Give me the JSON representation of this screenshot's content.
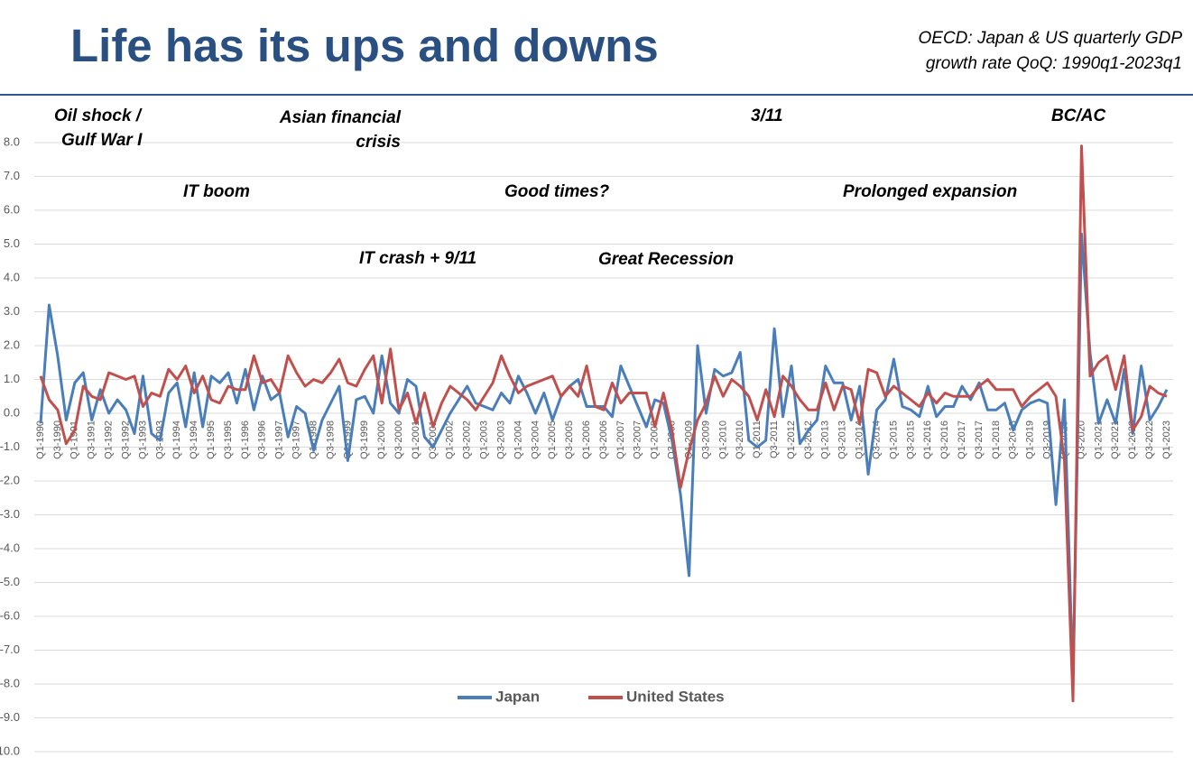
{
  "chart_data": {
    "type": "line",
    "title": "Life has its ups and downs",
    "subtitle": [
      "OECD: Japan & US quarterly GDP",
      "growth rate QoQ: 1990q1-2023q1"
    ],
    "annotations": [
      [
        "Oil shock /",
        "Gulf War I"
      ],
      [
        "Asian financial",
        "crisis"
      ],
      [
        "3/11"
      ],
      [
        "BC/AC"
      ],
      [
        "IT boom"
      ],
      [
        "Good times?"
      ],
      [
        "Prolonged expansion"
      ],
      [
        "IT crash + 9/11"
      ],
      [
        "Great Recession"
      ]
    ],
    "categories": [
      "Q1-1990",
      null,
      "Q3-1990",
      null,
      "Q1-1991",
      null,
      "Q3-1991",
      null,
      "Q1-1992",
      null,
      "Q3-1992",
      null,
      "Q1-1993",
      null,
      "Q3-1993",
      null,
      "Q1-1994",
      null,
      "Q3-1994",
      null,
      "Q1-1995",
      null,
      "Q3-1995",
      null,
      "Q1-1996",
      null,
      "Q3-1996",
      null,
      "Q1-1997",
      null,
      "Q3-1997",
      null,
      "Q1-1998",
      null,
      "Q3-1998",
      null,
      "Q1-1999",
      null,
      "Q3-1999",
      null,
      "Q1-2000",
      null,
      "Q3-2000",
      null,
      "Q1-2001",
      null,
      "Q3-2001",
      null,
      "Q1-2002",
      null,
      "Q3-2002",
      null,
      "Q1-2003",
      null,
      "Q3-2003",
      null,
      "Q1-2004",
      null,
      "Q3-2004",
      null,
      "Q1-2005",
      null,
      "Q3-2005",
      null,
      "Q1-2006",
      null,
      "Q3-2006",
      null,
      "Q1-2007",
      null,
      "Q3-2007",
      null,
      "Q1-2008",
      null,
      "Q3-2008",
      null,
      "Q1-2009",
      null,
      "Q3-2009",
      null,
      "Q1-2010",
      null,
      "Q3-2010",
      null,
      "Q1-2011",
      null,
      "Q3-2011",
      null,
      "Q1-2012",
      null,
      "Q3-2012",
      null,
      "Q1-2013",
      null,
      "Q3-2013",
      null,
      "Q1-2014",
      null,
      "Q3-2014",
      null,
      "Q1-2015",
      null,
      "Q3-2015",
      null,
      "Q1-2016",
      null,
      "Q3-2016",
      null,
      "Q1-2017",
      null,
      "Q3-2017",
      null,
      "Q1-2018",
      null,
      "Q3-2018",
      null,
      "Q1-2019",
      null,
      "Q3-2019",
      null,
      "Q1-2020",
      null,
      "Q3-2020",
      null,
      "Q1-2021",
      null,
      "Q3-2021",
      null,
      "Q1-2022",
      null,
      "Q3-2022",
      null,
      "Q1-2023"
    ],
    "series": [
      {
        "name": "Japan",
        "color": "#4a7ebb",
        "values": [
          -0.3,
          3.2,
          1.7,
          -0.2,
          0.9,
          1.2,
          -0.2,
          0.7,
          0.0,
          0.4,
          0.1,
          -0.6,
          1.1,
          -0.6,
          -0.8,
          0.6,
          0.9,
          -0.4,
          1.2,
          -0.4,
          1.1,
          0.9,
          1.2,
          0.3,
          1.3,
          0.1,
          1.1,
          0.4,
          0.6,
          -0.7,
          0.2,
          0.0,
          -1.1,
          -0.2,
          0.3,
          0.8,
          -1.4,
          0.4,
          0.5,
          0.0,
          1.7,
          0.3,
          0.0,
          1.0,
          0.8,
          -0.7,
          -1.0,
          -0.5,
          0.0,
          0.4,
          0.8,
          0.3,
          0.2,
          0.1,
          0.6,
          0.3,
          1.1,
          0.6,
          0.0,
          0.6,
          -0.2,
          0.5,
          0.8,
          1.0,
          0.2,
          0.2,
          0.2,
          -0.1,
          1.4,
          0.8,
          0.2,
          -0.4,
          0.4,
          0.3,
          -0.8,
          -2.4,
          -4.8,
          2.0,
          0.0,
          1.3,
          1.1,
          1.2,
          1.8,
          -0.8,
          -1.0,
          -0.8,
          2.5,
          -0.1,
          1.4,
          -0.9,
          -0.5,
          -0.2,
          1.4,
          0.9,
          0.9,
          -0.2,
          0.8,
          -1.8,
          0.1,
          0.4,
          1.6,
          0.2,
          0.1,
          -0.1,
          0.8,
          -0.1,
          0.2,
          0.2,
          0.8,
          0.4,
          0.9,
          0.1,
          0.1,
          0.3,
          -0.5,
          0.1,
          0.3,
          0.4,
          0.3,
          -2.7,
          0.4,
          -7.9,
          5.3,
          1.8,
          -0.3,
          0.4,
          -0.3,
          1.3,
          -0.6,
          1.4,
          -0.2,
          0.2,
          0.7
        ]
      },
      {
        "name": "United States",
        "color": "#c0504d",
        "values": [
          1.1,
          0.4,
          0.1,
          -0.9,
          -0.5,
          0.8,
          0.5,
          0.4,
          1.2,
          1.1,
          1.0,
          1.1,
          0.2,
          0.6,
          0.5,
          1.3,
          1.0,
          1.4,
          0.6,
          1.1,
          0.4,
          0.3,
          0.8,
          0.7,
          0.7,
          1.7,
          0.9,
          1.0,
          0.6,
          1.7,
          1.2,
          0.8,
          1.0,
          0.9,
          1.2,
          1.6,
          0.9,
          0.8,
          1.3,
          1.7,
          0.3,
          1.9,
          0.1,
          0.6,
          -0.3,
          0.6,
          -0.4,
          0.3,
          0.8,
          0.6,
          0.4,
          0.1,
          0.5,
          0.9,
          1.7,
          1.1,
          0.6,
          0.8,
          0.9,
          1.0,
          1.1,
          0.5,
          0.8,
          0.5,
          1.4,
          0.2,
          0.1,
          0.9,
          0.3,
          0.6,
          0.6,
          0.6,
          -0.4,
          0.6,
          -0.5,
          -2.2,
          -1.1,
          -0.2,
          0.3,
          1.1,
          0.5,
          1.0,
          0.8,
          0.5,
          -0.2,
          0.7,
          -0.1,
          1.1,
          0.8,
          0.4,
          0.1,
          0.1,
          0.9,
          0.1,
          0.8,
          0.7,
          -0.3,
          1.3,
          1.2,
          0.5,
          0.8,
          0.6,
          0.4,
          0.2,
          0.6,
          0.3,
          0.6,
          0.5,
          0.5,
          0.5,
          0.8,
          1.0,
          0.7,
          0.7,
          0.7,
          0.2,
          0.5,
          0.7,
          0.9,
          0.5,
          -1.4,
          -8.5,
          7.9,
          1.1,
          1.5,
          1.7,
          0.7,
          1.7,
          -0.5,
          -0.1,
          0.8,
          0.6,
          0.5
        ]
      }
    ],
    "ylim": [
      -10,
      8
    ],
    "yticks": [
      {
        "value": 8,
        "label": "8.0"
      },
      {
        "value": 7,
        "label": "7.0"
      },
      {
        "value": 6,
        "label": "6.0"
      },
      {
        "value": 5,
        "label": "5.0"
      },
      {
        "value": 4,
        "label": "4.0"
      },
      {
        "value": 3,
        "label": "3.0"
      },
      {
        "value": 2,
        "label": "2.0"
      },
      {
        "value": 1,
        "label": "1.0"
      },
      {
        "value": 0,
        "label": "0.0"
      },
      {
        "value": -1,
        "label": "-1.0"
      },
      {
        "value": -2,
        "label": "-2.0"
      },
      {
        "value": -3,
        "label": "-3.0"
      },
      {
        "value": -4,
        "label": "-4.0"
      },
      {
        "value": -5,
        "label": "-5.0"
      },
      {
        "value": -6,
        "label": "-6.0"
      },
      {
        "value": -7,
        "label": "-7.0"
      },
      {
        "value": -8,
        "label": "-8.0"
      },
      {
        "value": -9,
        "label": "-9.0"
      },
      {
        "value": -10,
        "label": "-10.0"
      }
    ],
    "grid": true,
    "legend": "bottom"
  }
}
